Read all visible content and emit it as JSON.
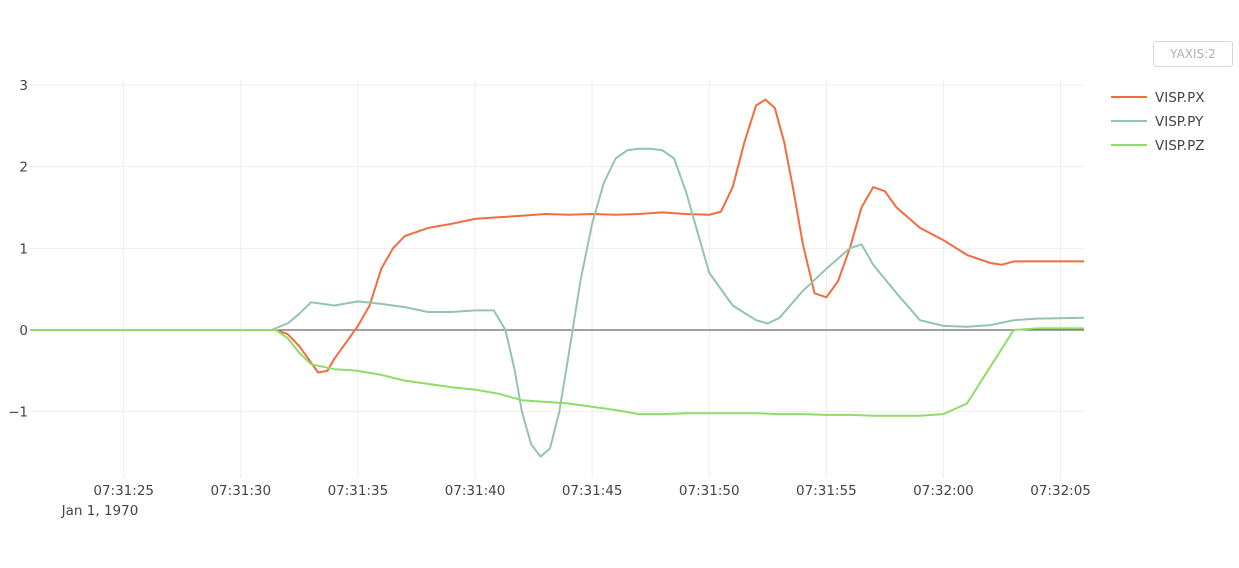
{
  "controls": {
    "yaxis_button": "YAXIS:2"
  },
  "chart_data": {
    "type": "line",
    "title": "",
    "xlabel": "",
    "ylabel": "",
    "x_start": "1970-01-01T07:31:21",
    "x_end": "1970-01-01T07:32:06",
    "x_ticks": [
      {
        "t": "07:31:25",
        "label": "07:31:25"
      },
      {
        "t": "07:31:30",
        "label": "07:31:30"
      },
      {
        "t": "07:31:35",
        "label": "07:31:35"
      },
      {
        "t": "07:31:40",
        "label": "07:31:40"
      },
      {
        "t": "07:31:45",
        "label": "07:31:45"
      },
      {
        "t": "07:31:50",
        "label": "07:31:50"
      },
      {
        "t": "07:31:55",
        "label": "07:31:55"
      },
      {
        "t": "07:32:00",
        "label": "07:32:00"
      },
      {
        "t": "07:32:05",
        "label": "07:32:05"
      }
    ],
    "x_date_label": "Jan 1, 1970",
    "ylim": [
      -1.8,
      3.0
    ],
    "y_ticks": [
      {
        "v": 3,
        "label": "3"
      },
      {
        "v": 2,
        "label": "2"
      },
      {
        "v": 1,
        "label": "1"
      },
      {
        "v": 0,
        "label": "0"
      },
      {
        "v": -1,
        "label": "−1"
      }
    ],
    "grid": true,
    "legend_position": "top-right",
    "series": [
      {
        "name": "VISP.PX",
        "color": "#f26c3f",
        "x": [
          "07:31:21",
          "07:31:25",
          "07:31:30",
          "07:31:31.5",
          "07:31:32",
          "07:31:32.5",
          "07:31:33",
          "07:31:33.3",
          "07:31:33.7",
          "07:31:34",
          "07:31:34.5",
          "07:31:35",
          "07:31:35.5",
          "07:31:36",
          "07:31:36.5",
          "07:31:37",
          "07:31:38",
          "07:31:39",
          "07:31:40",
          "07:31:41",
          "07:31:42",
          "07:31:43",
          "07:31:44",
          "07:31:45",
          "07:31:46",
          "07:31:47",
          "07:31:48",
          "07:31:49",
          "07:31:50",
          "07:31:50.5",
          "07:31:51",
          "07:31:51.5",
          "07:31:52",
          "07:31:52.4",
          "07:31:52.8",
          "07:31:53.2",
          "07:31:53.6",
          "07:31:54",
          "07:31:54.5",
          "07:31:55",
          "07:31:55.5",
          "07:31:56",
          "07:31:56.5",
          "07:31:57",
          "07:31:57.5",
          "07:31:58",
          "07:31:59",
          "07:32:00",
          "07:32:01",
          "07:32:02",
          "07:32:02.5",
          "07:32:03",
          "07:32:04",
          "07:32:05",
          "07:32:06"
        ],
        "y": [
          0.0,
          0.0,
          0.0,
          0.0,
          -0.05,
          -0.2,
          -0.4,
          -0.52,
          -0.5,
          -0.35,
          -0.15,
          0.05,
          0.3,
          0.75,
          1.0,
          1.15,
          1.25,
          1.3,
          1.36,
          1.38,
          1.4,
          1.42,
          1.41,
          1.42,
          1.41,
          1.42,
          1.44,
          1.42,
          1.41,
          1.45,
          1.75,
          2.3,
          2.75,
          2.82,
          2.72,
          2.3,
          1.7,
          1.05,
          0.45,
          0.4,
          0.6,
          1.0,
          1.5,
          1.75,
          1.7,
          1.5,
          1.25,
          1.1,
          0.92,
          0.82,
          0.8,
          0.84,
          0.84,
          0.84,
          0.84
        ]
      },
      {
        "name": "VISP.PY",
        "color": "#93c4b0",
        "x": [
          "07:31:21",
          "07:31:30",
          "07:31:31.3",
          "07:31:32",
          "07:31:32.5",
          "07:31:33",
          "07:31:34",
          "07:31:35",
          "07:31:36",
          "07:31:37",
          "07:31:38",
          "07:31:39",
          "07:31:40",
          "07:31:40.8",
          "07:31:41.3",
          "07:31:41.7",
          "07:31:42",
          "07:31:42.4",
          "07:31:42.8",
          "07:31:43.2",
          "07:31:43.6",
          "07:31:44",
          "07:31:44.5",
          "07:31:45",
          "07:31:45.5",
          "07:31:46",
          "07:31:46.5",
          "07:31:47",
          "07:31:47.5",
          "07:31:48",
          "07:31:48.5",
          "07:31:49",
          "07:31:49.5",
          "07:31:50",
          "07:31:51",
          "07:31:52",
          "07:31:52.5",
          "07:31:53",
          "07:31:54",
          "07:31:55",
          "07:31:56",
          "07:31:56.5",
          "07:31:57",
          "07:31:58",
          "07:31:59",
          "07:32:00",
          "07:32:01",
          "07:32:02",
          "07:32:03",
          "07:32:04",
          "07:32:06"
        ],
        "y": [
          0.0,
          0.0,
          0.0,
          0.08,
          0.2,
          0.34,
          0.3,
          0.35,
          0.32,
          0.28,
          0.22,
          0.22,
          0.24,
          0.24,
          0.0,
          -0.5,
          -1.0,
          -1.4,
          -1.55,
          -1.45,
          -1.0,
          -0.3,
          0.6,
          1.3,
          1.8,
          2.1,
          2.2,
          2.22,
          2.22,
          2.2,
          2.1,
          1.7,
          1.2,
          0.7,
          0.3,
          0.12,
          0.08,
          0.15,
          0.48,
          0.75,
          1.0,
          1.05,
          0.8,
          0.45,
          0.12,
          0.05,
          0.04,
          0.06,
          0.12,
          0.14,
          0.15
        ]
      },
      {
        "name": "VISP.PZ",
        "color": "#8fdc68",
        "x": [
          "07:31:21",
          "07:31:30",
          "07:31:31.5",
          "07:31:32",
          "07:31:32.5",
          "07:31:33",
          "07:31:34",
          "07:31:35",
          "07:31:36",
          "07:31:37",
          "07:31:38",
          "07:31:39",
          "07:31:40",
          "07:31:41",
          "07:31:42",
          "07:31:43",
          "07:31:44",
          "07:31:45",
          "07:31:46",
          "07:31:47",
          "07:31:48",
          "07:31:49",
          "07:31:50",
          "07:31:51",
          "07:31:52",
          "07:31:53",
          "07:31:54",
          "07:31:55",
          "07:31:56",
          "07:31:57",
          "07:31:58",
          "07:31:59",
          "07:32:00",
          "07:32:01",
          "07:32:02",
          "07:32:03",
          "07:32:04",
          "07:32:06"
        ],
        "y": [
          0.0,
          0.0,
          0.0,
          -0.1,
          -0.28,
          -0.42,
          -0.48,
          -0.5,
          -0.55,
          -0.62,
          -0.66,
          -0.7,
          -0.73,
          -0.78,
          -0.86,
          -0.88,
          -0.9,
          -0.94,
          -0.98,
          -1.03,
          -1.03,
          -1.02,
          -1.02,
          -1.02,
          -1.02,
          -1.03,
          -1.03,
          -1.04,
          -1.04,
          -1.05,
          -1.05,
          -1.05,
          -1.03,
          -0.9,
          -0.45,
          0.0,
          0.02,
          0.02
        ]
      }
    ]
  }
}
